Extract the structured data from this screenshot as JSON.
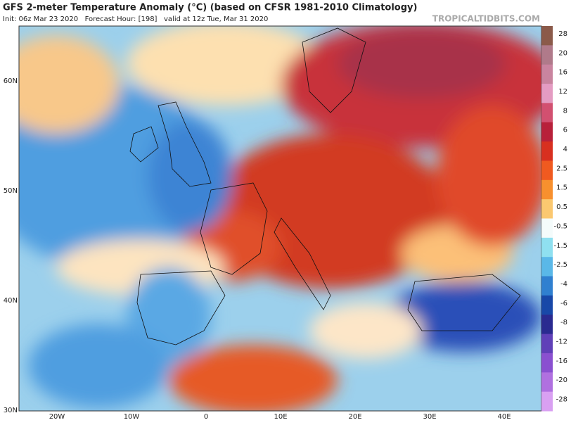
{
  "header": {
    "title": "GFS 2-meter Temperature Anomaly (°C) (based on CFSR 1981-2010 Climatology)",
    "subtitle": "Init: 06z Mar 23 2020   Forecast Hour: [198]   valid at 12z Tue, Mar 31 2020",
    "site": "TROPICALTIDBITS.COM"
  },
  "map": {
    "lat_labels": [
      "60N",
      "50N",
      "40N",
      "30N"
    ],
    "lon_labels": [
      "20W",
      "10W",
      "0",
      "10E",
      "20E",
      "30E",
      "40E"
    ]
  },
  "colorbar": {
    "labels": [
      "28",
      "20",
      "16",
      "12",
      "8",
      "6",
      "4",
      "2.5",
      "1.5",
      "0.5",
      "-0.5",
      "-1.5",
      "-2.5",
      "-4",
      "-6",
      "-8",
      "-12",
      "-16",
      "-20",
      "-28"
    ],
    "colors": [
      "#8b5a4a",
      "#b07a8a",
      "#c9849f",
      "#e49cc2",
      "#d25070",
      "#b8203a",
      "#d83020",
      "#f05a20",
      "#f8902e",
      "#fbc870",
      "#f4fbfb",
      "#8fe0f0",
      "#5ab8e8",
      "#3080d0",
      "#1848a8",
      "#2a2a90",
      "#6040b8",
      "#8a50d0",
      "#b070e0",
      "#d9a0f2"
    ]
  }
}
